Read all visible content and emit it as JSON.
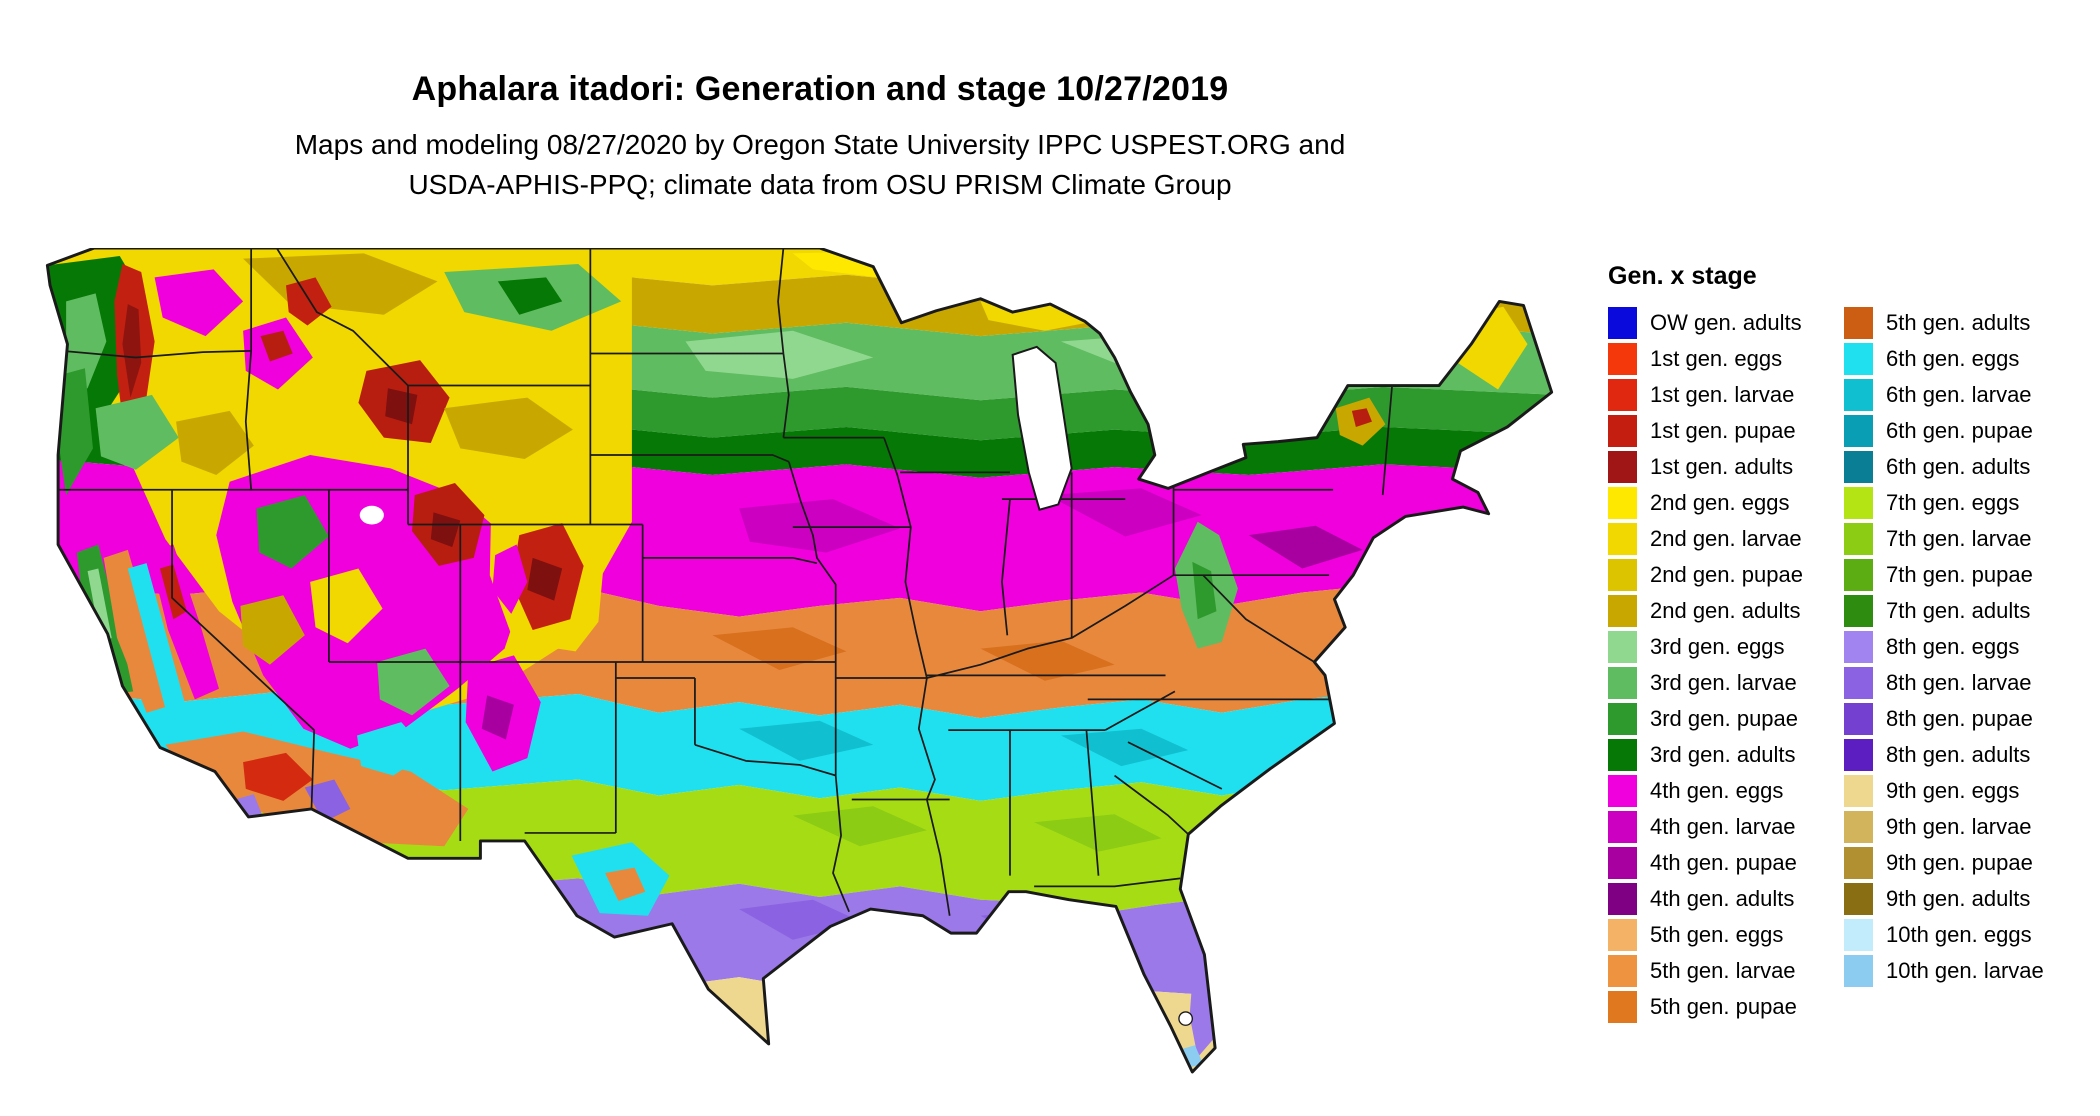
{
  "header": {
    "title": "Aphalara itadori: Generation and stage 10/27/2019",
    "subtitle_line1": "Maps and modeling 08/27/2020 by Oregon State University IPPC USPEST.ORG and",
    "subtitle_line2": "USDA-APHIS-PPQ; climate data from OSU PRISM Climate Group"
  },
  "legend": {
    "title": "Gen. x stage",
    "columns": [
      {
        "items": [
          {
            "label": "OW gen. adults",
            "color": "#0a0adc"
          },
          {
            "label": "1st gen. eggs",
            "color": "#f4380c"
          },
          {
            "label": "1st gen. larvae",
            "color": "#e02810"
          },
          {
            "label": "1st gen. pupae",
            "color": "#c41e10"
          },
          {
            "label": "1st gen. adults",
            "color": "#a01616"
          },
          {
            "label": "2nd gen. eggs",
            "color": "#ffe800"
          },
          {
            "label": "2nd gen. larvae",
            "color": "#f0d800"
          },
          {
            "label": "2nd gen. pupae",
            "color": "#dcc400"
          },
          {
            "label": "2nd gen. adults",
            "color": "#c8a800"
          },
          {
            "label": "3rd gen. eggs",
            "color": "#90d890"
          },
          {
            "label": "3rd gen. larvae",
            "color": "#60bc60"
          },
          {
            "label": "3rd gen. pupae",
            "color": "#2e9a2e"
          },
          {
            "label": "3rd gen. adults",
            "color": "#067806"
          },
          {
            "label": "4th gen. eggs",
            "color": "#f000dc"
          },
          {
            "label": "4th gen. larvae",
            "color": "#cc00c0"
          },
          {
            "label": "4th gen. pupae",
            "color": "#a800a0"
          },
          {
            "label": "4th gen. adults",
            "color": "#800084"
          },
          {
            "label": "5th gen. eggs",
            "color": "#f4b266"
          },
          {
            "label": "5th gen. larvae",
            "color": "#ee9440"
          },
          {
            "label": "5th gen. pupae",
            "color": "#e07820"
          }
        ]
      },
      {
        "items": [
          {
            "label": "5th gen. adults",
            "color": "#cc5e14"
          },
          {
            "label": "6th gen. eggs",
            "color": "#20e0f0"
          },
          {
            "label": "6th gen. larvae",
            "color": "#10c0d0"
          },
          {
            "label": "6th gen. pupae",
            "color": "#0a9eb4"
          },
          {
            "label": "6th gen. adults",
            "color": "#0a7e94"
          },
          {
            "label": "7th gen. eggs",
            "color": "#b4e414"
          },
          {
            "label": "7th gen. larvae",
            "color": "#8ccc14"
          },
          {
            "label": "7th gen. pupae",
            "color": "#5cac14"
          },
          {
            "label": "7th gen. adults",
            "color": "#2e8c10"
          },
          {
            "label": "8th gen. eggs",
            "color": "#a284f0"
          },
          {
            "label": "8th gen. larvae",
            "color": "#8a62e2"
          },
          {
            "label": "8th gen. pupae",
            "color": "#7440d0"
          },
          {
            "label": "8th gen. adults",
            "color": "#5c1ec0"
          },
          {
            "label": "9th gen. eggs",
            "color": "#eed890"
          },
          {
            "label": "9th gen. larvae",
            "color": "#d2b45c"
          },
          {
            "label": "9th gen. pupae",
            "color": "#b09030"
          },
          {
            "label": "9th gen. adults",
            "color": "#8a6e14"
          },
          {
            "label": "10th gen. eggs",
            "color": "#c2ecfc"
          },
          {
            "label": "10th gen. larvae",
            "color": "#8cccf0"
          }
        ]
      }
    ]
  }
}
